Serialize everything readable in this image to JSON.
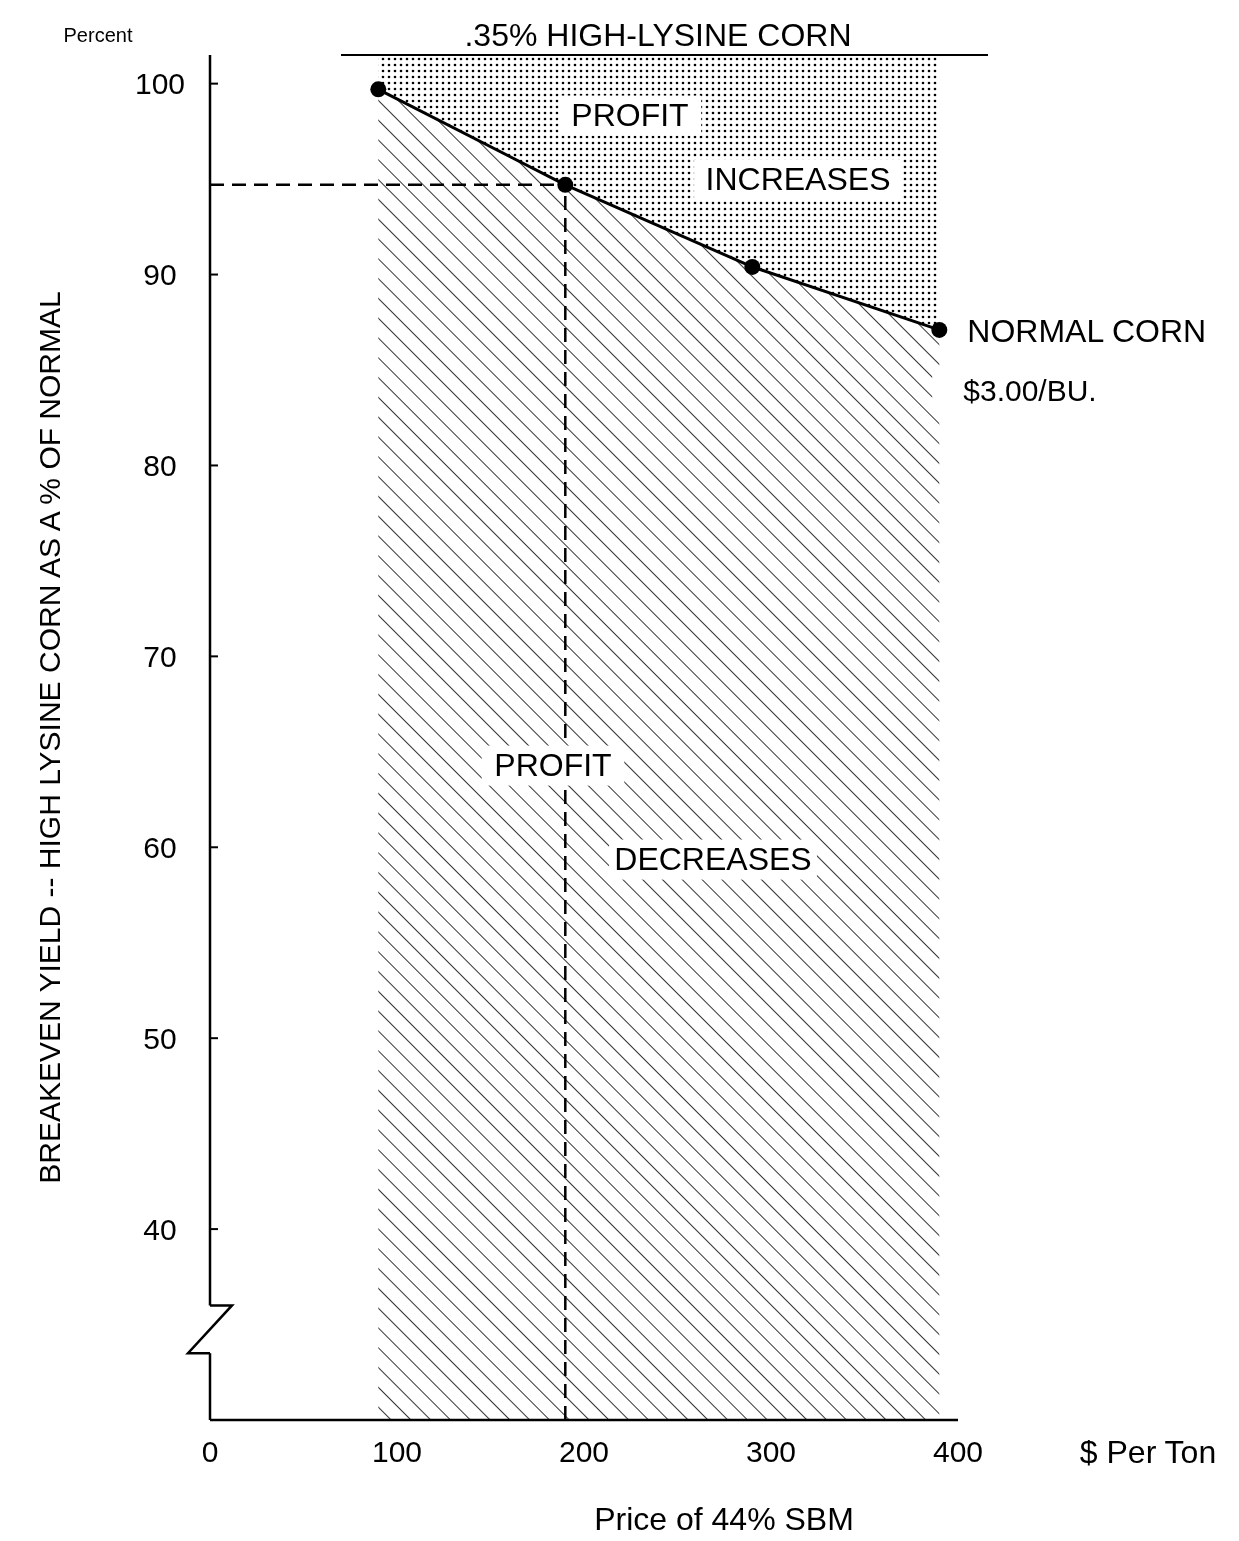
{
  "chart_data": {
    "type": "area",
    "title": ".35% HIGH-LYSINE CORN",
    "xlabel": "Price of 44% SBM",
    "ylabel": "BREAKEVEN YIELD -- HIGH LYSINE CORN AS A % OF NORMAL",
    "x": [
      90,
      190,
      290,
      390
    ],
    "series": [
      {
        "name": "NORMAL CORN",
        "color": "#000000",
        "values": [
          99.7,
          94.7,
          90.4,
          87.1
        ]
      }
    ],
    "marker": "circle",
    "line_style": "solid",
    "xlim": [
      0,
      400
    ],
    "xticks": [
      0,
      100,
      200,
      300,
      400
    ],
    "ylim": [
      30,
      101.5
    ],
    "yticks": [
      40,
      50,
      60,
      70,
      80,
      90,
      100
    ],
    "bands": [
      {
        "axis": "x",
        "from": 90,
        "to": 390,
        "color": "#000000"
      }
    ],
    "ref_lines": [
      {
        "axis": "x",
        "value": 190,
        "line_style": "dashed"
      },
      {
        "axis": "y",
        "value": 94.7,
        "line_style": "dashed"
      }
    ],
    "annotations": [
      "Percent",
      "$ Per Ton",
      "PROFIT",
      "INCREASES",
      "PROFIT",
      "DECREASES",
      "$3.00/BU."
    ]
  }
}
